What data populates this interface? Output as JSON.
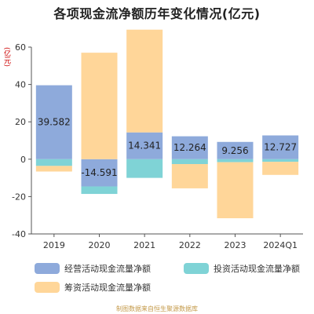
{
  "chart_data": {
    "type": "bar",
    "title": "各项现金流净额历年变化情况(亿元)",
    "unit_label": "(亿元)",
    "categories": [
      "2019",
      "2020",
      "2021",
      "2022",
      "2023",
      "2024Q1"
    ],
    "ylim": [
      -40,
      60
    ],
    "yticks": [
      -40,
      -20,
      0,
      20,
      40,
      60
    ],
    "grid": false,
    "legend_position": "bottom",
    "series": [
      {
        "name": "经营活动现金流量净额",
        "color": "#8eaadb",
        "values": [
          39.582,
          -14.591,
          14.341,
          12.264,
          9.256,
          12.727
        ],
        "labels": [
          "39.582",
          "-14.591",
          "14.341",
          "12.264",
          "9.256",
          "12.727"
        ]
      },
      {
        "name": "投资活动现金流量净额",
        "color": "#7fd3d6",
        "values": [
          -3.6,
          -4.0,
          -10.0,
          -2.6,
          -1.6,
          -1.4
        ]
      },
      {
        "name": "筹资活动现金流量净额",
        "color": "#ffd699",
        "values": [
          -3.0,
          57.0,
          55.0,
          -13.0,
          -30.0,
          -7.0
        ]
      }
    ]
  },
  "source_note": "制图数据来自恒生聚源数据库"
}
